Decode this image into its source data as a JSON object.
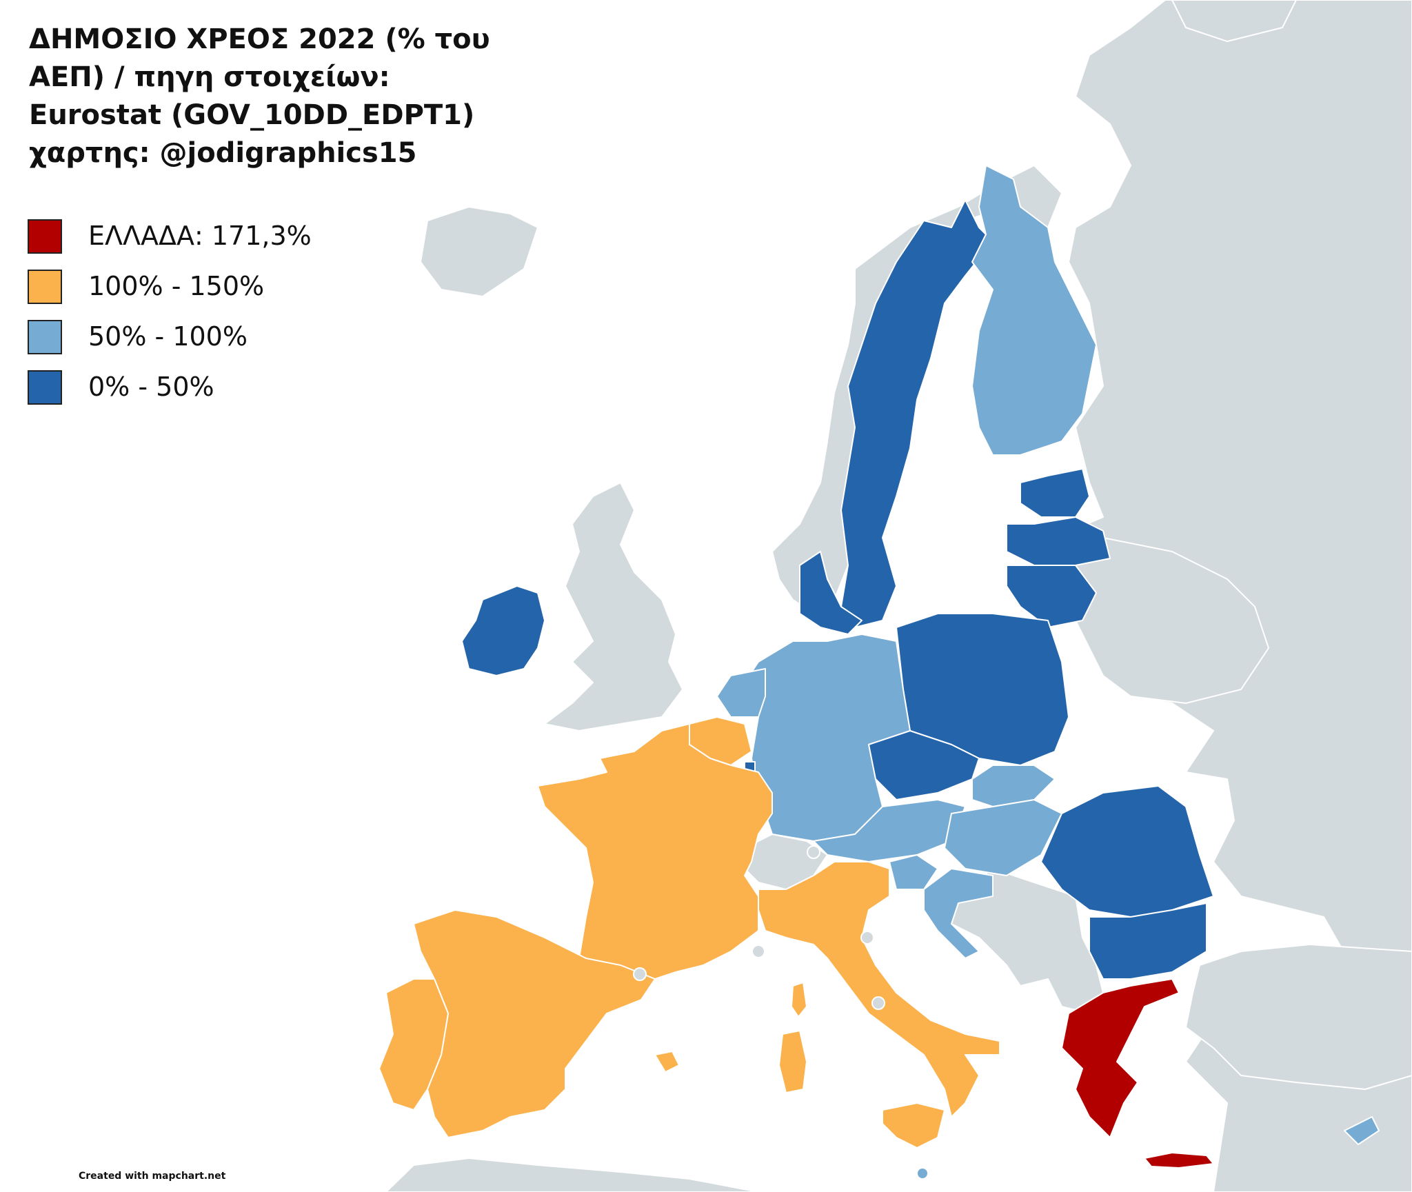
{
  "title_lines": [
    "ΔΗΜΟΣΙΟ ΧΡΕΟΣ 2022 (% του",
    "ΑΕΠ) / πηγη στοιχείων:",
    "Eurostat (GOV_10DD_EDPT1)",
    "χαρτης: @jodigraphics15"
  ],
  "legend": [
    {
      "label": "ΕΛΛΑΔΑ: 171,3%",
      "color": "#b20000"
    },
    {
      "label": "100% - 150%",
      "color": "#fbb24d"
    },
    {
      "label": "50% - 100%",
      "color": "#76abd3"
    },
    {
      "label": "0% - 50%",
      "color": "#2464ab"
    }
  ],
  "credit": "Created with mapchart.net",
  "colors": {
    "sea": "#ffffff",
    "non_eu_land": "#d3dadd",
    "border": "#ffffff"
  },
  "regions": [
    {
      "name": "Greece",
      "category": "ΕΛΛΑΔΑ: 171,3%"
    },
    {
      "name": "Italy",
      "category": "100% - 150%"
    },
    {
      "name": "France",
      "category": "100% - 150%"
    },
    {
      "name": "Spain",
      "category": "100% - 150%"
    },
    {
      "name": "Portugal",
      "category": "100% - 150%"
    },
    {
      "name": "Belgium",
      "category": "100% - 150%"
    },
    {
      "name": "Cyprus",
      "category": "50% - 100%"
    },
    {
      "name": "Finland",
      "category": "50% - 100%"
    },
    {
      "name": "Germany",
      "category": "50% - 100%"
    },
    {
      "name": "Austria",
      "category": "50% - 100%"
    },
    {
      "name": "Hungary",
      "category": "50% - 100%"
    },
    {
      "name": "Slovakia",
      "category": "50% - 100%"
    },
    {
      "name": "Slovenia",
      "category": "50% - 100%"
    },
    {
      "name": "Croatia",
      "category": "50% - 100%"
    },
    {
      "name": "Netherlands",
      "category": "50% - 100%"
    },
    {
      "name": "Malta",
      "category": "50% - 100%"
    },
    {
      "name": "Ireland",
      "category": "0% - 50%"
    },
    {
      "name": "Sweden",
      "category": "0% - 50%"
    },
    {
      "name": "Denmark",
      "category": "0% - 50%"
    },
    {
      "name": "Estonia",
      "category": "0% - 50%"
    },
    {
      "name": "Latvia",
      "category": "0% - 50%"
    },
    {
      "name": "Lithuania",
      "category": "0% - 50%"
    },
    {
      "name": "Poland",
      "category": "0% - 50%"
    },
    {
      "name": "Czechia",
      "category": "0% - 50%"
    },
    {
      "name": "Romania",
      "category": "0% - 50%"
    },
    {
      "name": "Bulgaria",
      "category": "0% - 50%"
    },
    {
      "name": "Luxembourg",
      "category": "0% - 50%"
    }
  ]
}
